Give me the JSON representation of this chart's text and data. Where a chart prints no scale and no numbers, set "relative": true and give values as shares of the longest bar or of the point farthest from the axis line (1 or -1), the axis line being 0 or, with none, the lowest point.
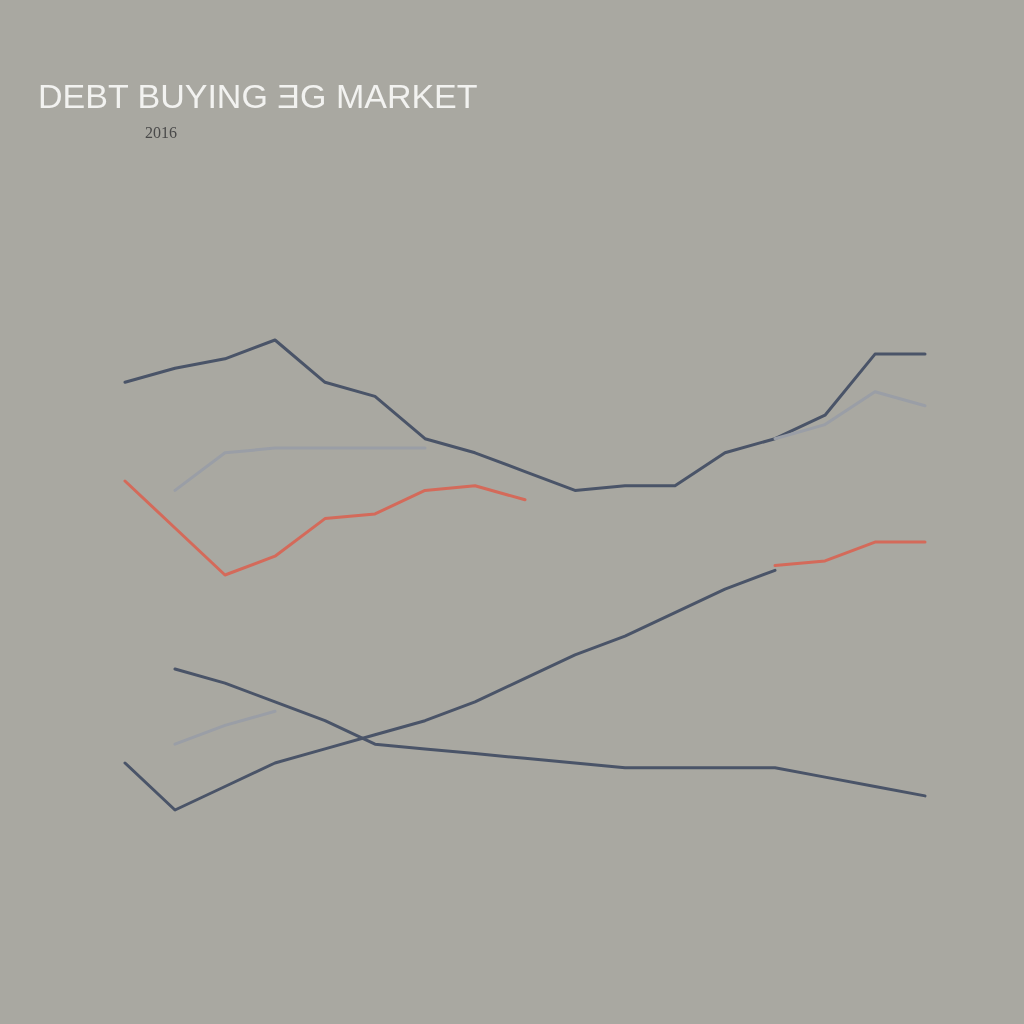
{
  "chart_data": {
    "type": "line",
    "title": "DEBT BUYING ƎG MARKET",
    "subtitle": "2016",
    "relative": true,
    "categories": [
      null,
      null,
      null,
      null,
      null,
      null,
      null,
      null,
      null,
      null,
      null,
      null,
      null,
      null,
      null,
      null,
      null
    ],
    "series": [
      {
        "color": "#4a5468",
        "values": [
          0.91,
          0.94,
          0.96,
          1.0,
          0.91,
          0.88,
          0.79,
          0.76,
          0.72,
          0.68,
          0.69,
          0.69,
          0.76,
          0.79,
          0.84,
          0.97,
          0.97
        ]
      },
      {
        "color": "#9a9ea6",
        "values": [
          null,
          0.68,
          0.76,
          0.77,
          0.77,
          0.77,
          0.77,
          null,
          null,
          null,
          null,
          null,
          null,
          null,
          null,
          null,
          null
        ]
      },
      {
        "color": "#9a9ea6",
        "values": [
          null,
          null,
          null,
          null,
          null,
          null,
          null,
          null,
          null,
          null,
          null,
          null,
          null,
          0.79,
          0.82,
          0.89,
          0.86
        ]
      },
      {
        "color": "#d46a5a",
        "values": [
          0.7,
          0.6,
          0.5,
          0.54,
          0.62,
          0.63,
          0.68,
          0.69,
          0.66,
          null,
          null,
          null,
          null,
          null,
          null,
          null,
          null
        ]
      },
      {
        "color": "#d46a5a",
        "values": [
          null,
          null,
          null,
          null,
          null,
          null,
          null,
          null,
          null,
          null,
          null,
          null,
          null,
          0.52,
          0.53,
          0.57,
          0.57
        ]
      },
      {
        "color": "#4a5468",
        "values": [
          0.1,
          0,
          0.05,
          0.1,
          0.13,
          0.16,
          0.19,
          0.23,
          0.28,
          0.33,
          0.37,
          0.42,
          0.47,
          0.51,
          null,
          null,
          null
        ]
      },
      {
        "color": "#4a5468",
        "values": [
          null,
          0.3,
          0.27,
          0.23,
          0.19,
          0.14,
          0.13,
          0.12,
          0.11,
          0.1,
          0.09,
          0.09,
          0.09,
          0.09,
          0.07,
          0.05,
          0.03
        ]
      },
      {
        "color": "#9a9ea6",
        "values": [
          null,
          0.14,
          0.18,
          0.21,
          null,
          null,
          null,
          null,
          null,
          null,
          null,
          null,
          null,
          null,
          null,
          null,
          null
        ]
      }
    ]
  }
}
